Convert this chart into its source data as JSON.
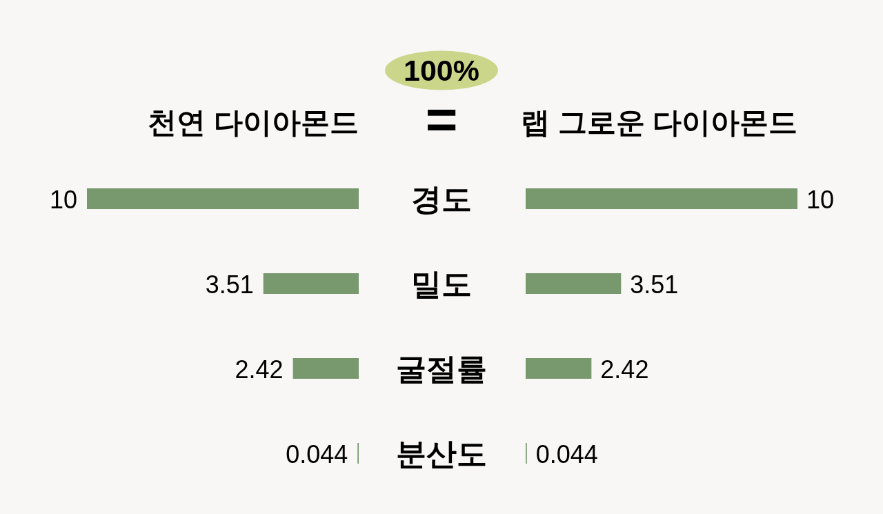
{
  "chart_data": [
    {
      "type": "bar",
      "orientation": "horizontal",
      "title": "천연 다이아몬드",
      "categories": [
        "경도",
        "밀도",
        "굴절률",
        "분산도"
      ],
      "values": [
        10,
        3.51,
        2.42,
        0.044
      ],
      "color": "#78986e",
      "data_labels": true,
      "tick_labels": "y",
      "annotations": [
        "100%",
        "="
      ]
    },
    {
      "type": "bar",
      "orientation": "horizontal",
      "title": "랩 그로운 다이아몬드",
      "categories": [
        null,
        null,
        null,
        null
      ],
      "values": [
        10,
        3.51,
        2.42,
        0.044
      ],
      "color": "#78986e",
      "data_labels": true
    }
  ]
}
